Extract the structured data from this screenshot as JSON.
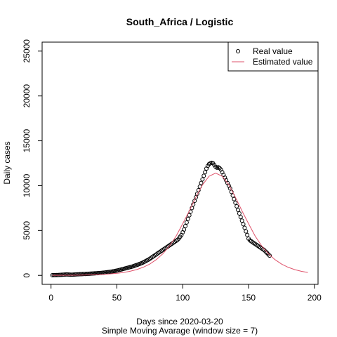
{
  "chart_data": {
    "type": "scatter",
    "title": "South_Africa / Logistic",
    "x_label": "Days since 2020-03-20",
    "subtitle": "Simple Moving Avarage (window size = 7)",
    "y_label": "Daily cases",
    "xlim": [
      -6.76,
      202.76
    ],
    "ylim": [
      -1000,
      26000
    ],
    "xticks": [
      0,
      50,
      100,
      150,
      200
    ],
    "yticks": [
      0,
      5000,
      10000,
      15000,
      20000,
      25000
    ],
    "legend": "top-right",
    "series": [
      {
        "name": "Real value",
        "style": "points",
        "color": "#000000",
        "x": [
          1,
          2,
          3,
          4,
          5,
          6,
          7,
          8,
          9,
          10,
          11,
          12,
          13,
          14,
          15,
          16,
          17,
          18,
          19,
          20,
          21,
          22,
          23,
          24,
          25,
          26,
          27,
          28,
          29,
          30,
          31,
          32,
          33,
          34,
          35,
          36,
          37,
          38,
          39,
          40,
          41,
          42,
          43,
          44,
          45,
          46,
          47,
          48,
          49,
          50,
          51,
          52,
          53,
          54,
          55,
          56,
          57,
          58,
          59,
          60,
          61,
          62,
          63,
          64,
          65,
          66,
          67,
          68,
          69,
          70,
          71,
          72,
          73,
          74,
          75,
          76,
          77,
          78,
          79,
          80,
          81,
          82,
          83,
          84,
          85,
          86,
          87,
          88,
          89,
          90,
          91,
          92,
          93,
          94,
          95,
          96,
          97,
          98,
          99,
          100,
          101,
          102,
          103,
          104,
          105,
          106,
          107,
          108,
          109,
          110,
          111,
          112,
          113,
          114,
          115,
          116,
          117,
          118,
          119,
          120,
          121,
          122,
          123,
          124,
          125,
          126,
          127,
          128,
          129,
          130,
          131,
          132,
          133,
          134,
          135,
          136,
          137,
          138,
          139,
          140,
          141,
          142,
          143,
          144,
          145,
          146,
          147,
          148,
          149,
          150,
          151,
          152,
          153,
          154,
          155,
          156,
          157,
          158,
          159,
          160,
          161,
          162,
          163,
          164,
          165,
          166
        ],
        "values": [
          20,
          25,
          30,
          35,
          40,
          50,
          60,
          70,
          80,
          90,
          100,
          110,
          100,
          90,
          80,
          80,
          90,
          100,
          110,
          120,
          120,
          130,
          130,
          140,
          150,
          150,
          160,
          170,
          180,
          190,
          200,
          210,
          220,
          230,
          240,
          250,
          260,
          270,
          290,
          300,
          320,
          340,
          360,
          380,
          400,
          420,
          450,
          480,
          510,
          540,
          570,
          600,
          640,
          680,
          720,
          760,
          800,
          840,
          880,
          920,
          960,
          1000,
          1050,
          1100,
          1150,
          1200,
          1260,
          1320,
          1380,
          1450,
          1520,
          1600,
          1680,
          1760,
          1850,
          1950,
          2050,
          2150,
          2250,
          2350,
          2450,
          2550,
          2650,
          2750,
          2850,
          2950,
          3050,
          3150,
          3250,
          3350,
          3450,
          3550,
          3650,
          3750,
          3850,
          3950,
          4100,
          4300,
          4500,
          4800,
          5100,
          5500,
          5900,
          6300,
          6700,
          7100,
          7500,
          7900,
          8300,
          8700,
          9100,
          9500,
          9900,
          10300,
          10700,
          11100,
          11500,
          11900,
          12200,
          12400,
          12500,
          12550,
          12500,
          12300,
          12100,
          12000,
          12050,
          11950,
          11800,
          11500,
          11200,
          10900,
          10600,
          10300,
          10000,
          9700,
          9300,
          8900,
          8500,
          8100,
          7700,
          7300,
          6900,
          6500,
          6100,
          5700,
          5300,
          4900,
          4500,
          4100,
          3900,
          3800,
          3700,
          3600,
          3500,
          3400,
          3300,
          3200,
          3100,
          3000,
          2900,
          2800,
          2650,
          2500,
          2350,
          2200
        ]
      },
      {
        "name": "Estimated value",
        "style": "line",
        "color": "#DF536B",
        "x": [
          1,
          5,
          10,
          15,
          20,
          25,
          30,
          35,
          40,
          45,
          50,
          55,
          60,
          65,
          70,
          75,
          80,
          85,
          90,
          95,
          100,
          105,
          110,
          115,
          120,
          125,
          130,
          135,
          140,
          145,
          150,
          155,
          160,
          165,
          170,
          175,
          180,
          185,
          190,
          195
        ],
        "values": [
          7,
          10,
          14,
          20,
          28,
          39,
          56,
          80,
          113,
          161,
          228,
          323,
          458,
          645,
          906,
          1267,
          1761,
          2420,
          3285,
          4380,
          5760,
          7190,
          8720,
          10090,
          11050,
          11400,
          11050,
          10090,
          8720,
          7190,
          5760,
          4380,
          3285,
          2420,
          1761,
          1267,
          906,
          645,
          458,
          323
        ]
      }
    ]
  }
}
